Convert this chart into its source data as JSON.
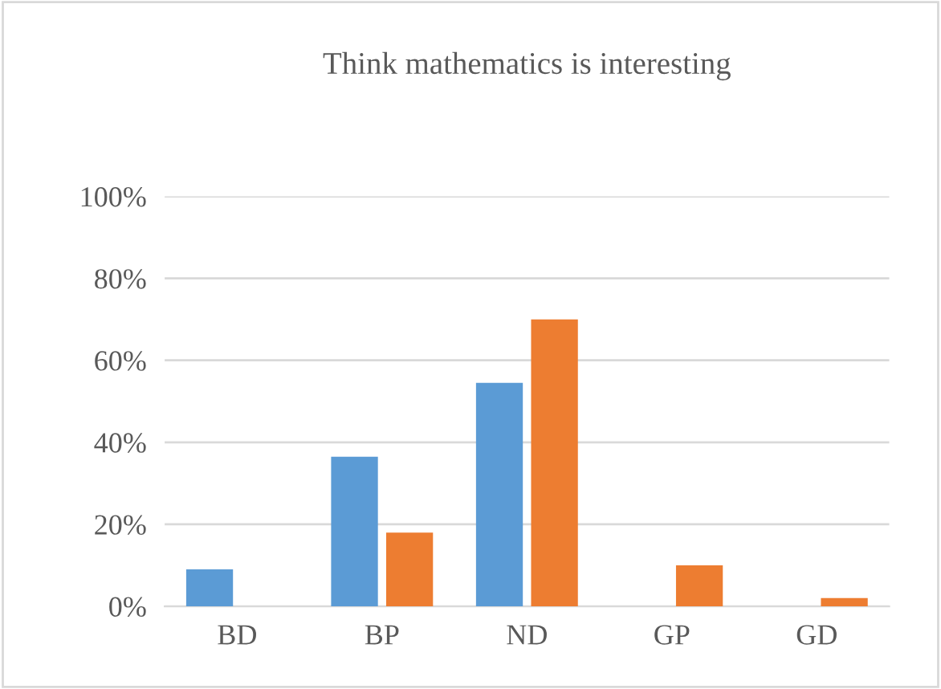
{
  "chart_data": {
    "type": "bar",
    "title": "Think mathematics is interesting",
    "categories": [
      "BD",
      "BP",
      "ND",
      "GP",
      "GD"
    ],
    "series": [
      {
        "color": "#5b9bd5",
        "values": [
          9,
          36.5,
          54.5,
          0,
          0
        ]
      },
      {
        "color": "#ed7d31",
        "values": [
          0,
          18,
          70,
          10,
          2
        ]
      }
    ],
    "ylim": [
      0,
      100
    ],
    "yticks": [
      {
        "value": 0,
        "label": "0%"
      },
      {
        "value": 20,
        "label": "20%"
      },
      {
        "value": 40,
        "label": "40%"
      },
      {
        "value": 60,
        "label": "60%"
      },
      {
        "value": 80,
        "label": "80%"
      },
      {
        "value": 100,
        "label": "100%"
      }
    ],
    "grid": "y"
  }
}
